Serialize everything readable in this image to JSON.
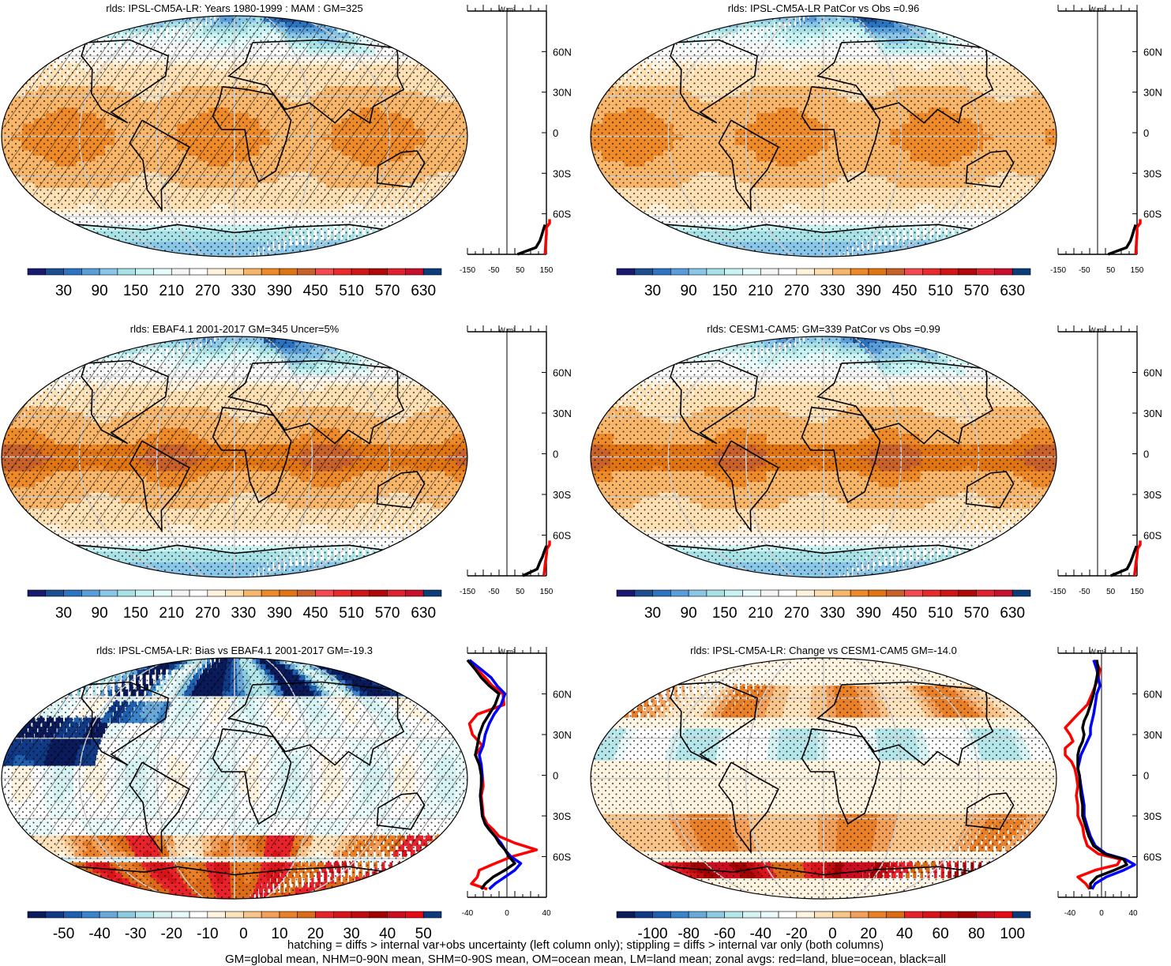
{
  "chart_data": [
    {
      "type": "heatmap",
      "title": "rlds: IPSL-CM5A-LR: Years 1980-1999 : MAM : GM=325",
      "colorbar": {
        "levels": [
          0,
          30,
          60,
          90,
          120,
          150,
          180,
          210,
          240,
          270,
          300,
          330,
          360,
          390,
          420,
          450,
          480,
          510,
          540,
          570,
          600,
          630,
          660
        ],
        "tick_labels": [
          "30",
          "90",
          "150",
          "210",
          "270",
          "330",
          "390",
          "450",
          "510",
          "570",
          "630"
        ]
      },
      "zonal": {
        "type": "line",
        "xlim": [
          -150,
          150
        ],
        "xticks": [
          "-150",
          "-50",
          "50",
          "150"
        ],
        "yticks": [
          "60N",
          "30N",
          "0",
          "30S",
          "60S"
        ],
        "unit": "W m²",
        "series": [
          {
            "name": "red",
            "color": "#ff0000",
            "lat": [
              -90,
              -80,
              -75,
              -70,
              -67,
              -64
            ],
            "values": [
              145,
              148,
              150,
              150,
              165,
              180
            ]
          },
          {
            "name": "black",
            "color": "#000000",
            "lat": [
              -90,
              -85,
              -80,
              -76,
              -72,
              -68
            ],
            "values": [
              40,
              110,
              125,
              132,
              138,
              145
            ]
          }
        ]
      }
    },
    {
      "type": "heatmap",
      "title": "rlds: IPSL-CM5A-LR PatCor vs Obs =0.96",
      "colorbar": {
        "levels": [
          0,
          30,
          60,
          90,
          120,
          150,
          180,
          210,
          240,
          270,
          300,
          330,
          360,
          390,
          420,
          450,
          480,
          510,
          540,
          570,
          600,
          630,
          660
        ],
        "tick_labels": [
          "30",
          "90",
          "150",
          "210",
          "270",
          "330",
          "390",
          "450",
          "510",
          "570",
          "630"
        ]
      },
      "zonal": {
        "type": "line",
        "xlim": [
          -150,
          150
        ],
        "xticks": [
          "-150",
          "-50",
          "50",
          "150"
        ],
        "yticks": [
          "60N",
          "30N",
          "0",
          "30S",
          "60S"
        ],
        "unit": "W m²",
        "series": [
          {
            "name": "red",
            "color": "#ff0000",
            "lat": [
              -90,
              -80,
              -75,
              -70,
              -67,
              -64
            ],
            "values": [
              145,
              148,
              150,
              150,
              165,
              180
            ]
          },
          {
            "name": "black",
            "color": "#000000",
            "lat": [
              -90,
              -85,
              -80,
              -76,
              -72,
              -68
            ],
            "values": [
              40,
              110,
              125,
              132,
              138,
              145
            ]
          }
        ]
      }
    },
    {
      "type": "heatmap",
      "title": "rlds: EBAF4.1 2001-2017 GM=345 Uncer=5%",
      "colorbar": {
        "levels": [
          0,
          30,
          60,
          90,
          120,
          150,
          180,
          210,
          240,
          270,
          300,
          330,
          360,
          390,
          420,
          450,
          480,
          510,
          540,
          570,
          600,
          630,
          660
        ],
        "tick_labels": [
          "30",
          "90",
          "150",
          "210",
          "270",
          "330",
          "390",
          "450",
          "510",
          "570",
          "630"
        ]
      },
      "zonal": {
        "type": "line",
        "xlim": [
          -150,
          150
        ],
        "xticks": [
          "-150",
          "-50",
          "50",
          "150"
        ],
        "yticks": [
          "60N",
          "30N",
          "0",
          "30S",
          "60S"
        ],
        "unit": "W m²",
        "series": [
          {
            "name": "red",
            "color": "#ff0000",
            "lat": [
              -90,
              -80,
              -75,
              -70,
              -67,
              -64
            ],
            "values": [
              140,
              146,
              150,
              152,
              165,
              175
            ]
          },
          {
            "name": "black",
            "color": "#000000",
            "lat": [
              -90,
              -85,
              -80,
              -76,
              -72,
              -68
            ],
            "values": [
              60,
              115,
              125,
              135,
              142,
              150
            ]
          }
        ]
      }
    },
    {
      "type": "heatmap",
      "title": "rlds: CESM1-CAM5: GM=339 PatCor vs Obs =0.99",
      "colorbar": {
        "levels": [
          0,
          30,
          60,
          90,
          120,
          150,
          180,
          210,
          240,
          270,
          300,
          330,
          360,
          390,
          420,
          450,
          480,
          510,
          540,
          570,
          600,
          630,
          660
        ],
        "tick_labels": [
          "30",
          "90",
          "150",
          "210",
          "270",
          "330",
          "390",
          "450",
          "510",
          "570",
          "630"
        ]
      },
      "zonal": {
        "type": "line",
        "xlim": [
          -150,
          150
        ],
        "xticks": [
          "-150",
          "-50",
          "50",
          "150"
        ],
        "yticks": [
          "60N",
          "30N",
          "0",
          "30S",
          "60S"
        ],
        "unit": "W m²",
        "series": [
          {
            "name": "red",
            "color": "#ff0000",
            "lat": [
              -90,
              -80,
              -75,
              -70,
              -67,
              -64
            ],
            "values": [
              140,
              146,
              150,
              152,
              165,
              178
            ]
          },
          {
            "name": "black",
            "color": "#000000",
            "lat": [
              -90,
              -85,
              -80,
              -76,
              -72,
              -68
            ],
            "values": [
              50,
              112,
              125,
              133,
              140,
              148
            ]
          }
        ]
      }
    },
    {
      "type": "heatmap",
      "title": "rlds: IPSL-CM5A-LR: Bias vs EBAF4.1 2001-2017 GM=-19.3",
      "colorbar": {
        "levels": [
          -55,
          -50,
          -45,
          -40,
          -35,
          -30,
          -25,
          -20,
          -15,
          -10,
          -5,
          0,
          5,
          10,
          15,
          20,
          25,
          30,
          35,
          40,
          45,
          50,
          55
        ],
        "tick_labels": [
          "-50",
          "-40",
          "-30",
          "-20",
          "-10",
          "0",
          "10",
          "20",
          "30",
          "40",
          "50"
        ]
      },
      "zonal": {
        "type": "line",
        "xlim": [
          -40,
          40
        ],
        "xticks": [
          "-40",
          "0",
          "40"
        ],
        "yticks": [
          "60N",
          "30N",
          "0",
          "30S",
          "60S"
        ],
        "unit": "W m²",
        "series": [
          {
            "name": "red",
            "color": "#ff0000",
            "lat": [
              85,
              78,
              72,
              66,
              60,
              52,
              45,
              38,
              30,
              22,
              15,
              8,
              0,
              -8,
              -15,
              -22,
              -30,
              -36,
              -40,
              -45,
              -50,
              -55,
              -60,
              -65,
              -70,
              -75,
              -80,
              -84
            ],
            "values": [
              -38,
              -30,
              -22,
              -15,
              -4,
              -3,
              -30,
              -38,
              -35,
              -25,
              -32,
              -28,
              -25,
              -24,
              -26,
              -25,
              -24,
              -20,
              -14,
              -8,
              8,
              30,
              5,
              -12,
              -28,
              -30,
              -36,
              -20
            ]
          },
          {
            "name": "blue",
            "color": "#0000ff",
            "lat": [
              85,
              78,
              72,
              66,
              60,
              52,
              45,
              38,
              30,
              22,
              15,
              8,
              0,
              -8,
              -15,
              -22,
              -30,
              -36,
              -40,
              -45,
              -50,
              -55,
              -60,
              -65,
              -70,
              -75,
              -80,
              -84
            ],
            "values": [
              -38,
              -26,
              -16,
              -10,
              -2,
              -6,
              -13,
              -18,
              -22,
              -24,
              -28,
              -26,
              -25,
              -26,
              -27,
              -26,
              -25,
              -22,
              -18,
              -12,
              -6,
              -2,
              4,
              14,
              8,
              -2,
              -12,
              -18
            ]
          },
          {
            "name": "black",
            "color": "#000000",
            "lat": [
              85,
              78,
              72,
              66,
              60,
              52,
              45,
              38,
              30,
              22,
              15,
              8,
              0,
              -8,
              -15,
              -22,
              -30,
              -36,
              -40,
              -45,
              -50,
              -55,
              -60,
              -65,
              -70,
              -75,
              -80,
              -84
            ],
            "values": [
              -40,
              -32,
              -26,
              -18,
              -8,
              -12,
              -18,
              -24,
              -28,
              -30,
              -32,
              -28,
              -26,
              -26,
              -27,
              -26,
              -25,
              -22,
              -18,
              -12,
              -8,
              -2,
              2,
              8,
              -2,
              -14,
              -22,
              -26
            ]
          }
        ]
      }
    },
    {
      "type": "heatmap",
      "title": "rlds: IPSL-CM5A-LR: Change vs CESM1-CAM5 GM=-14.0",
      "colorbar": {
        "levels": [
          -110,
          -100,
          -90,
          -80,
          -70,
          -60,
          -50,
          -40,
          -30,
          -20,
          -10,
          0,
          10,
          20,
          30,
          40,
          50,
          60,
          70,
          80,
          90,
          100,
          110
        ],
        "tick_labels": [
          "-100",
          "-80",
          "-60",
          "-40",
          "-20",
          "0",
          "20",
          "40",
          "60",
          "80",
          "100"
        ]
      },
      "zonal": {
        "type": "line",
        "xlim": [
          -55,
          45
        ],
        "xticks": [
          "-40",
          "0",
          "40"
        ],
        "yticks": [
          "60N",
          "30N",
          "0",
          "30S",
          "60S"
        ],
        "unit": "W m²",
        "series": [
          {
            "name": "red",
            "color": "#ff0000",
            "lat": [
              85,
              78,
              72,
              66,
              60,
              52,
              45,
              40,
              35,
              30,
              25,
              20,
              15,
              10,
              5,
              0,
              -8,
              -15,
              -22,
              -30,
              -38,
              -45,
              -52,
              -58,
              -62,
              -66,
              -70,
              -75,
              -80,
              -84
            ],
            "values": [
              -8,
              -2,
              -4,
              -8,
              -12,
              -18,
              -30,
              -38,
              -46,
              -40,
              -36,
              -46,
              -46,
              -38,
              -34,
              -32,
              -30,
              -32,
              -30,
              -30,
              -24,
              -22,
              -18,
              -4,
              24,
              20,
              -8,
              -30,
              -20,
              -15
            ]
          },
          {
            "name": "blue",
            "color": "#0000ff",
            "lat": [
              85,
              78,
              72,
              66,
              60,
              52,
              45,
              40,
              35,
              30,
              25,
              20,
              15,
              10,
              5,
              0,
              -8,
              -15,
              -22,
              -30,
              -38,
              -45,
              -52,
              -58,
              -62,
              -66,
              -70,
              -75,
              -80,
              -84
            ],
            "values": [
              -10,
              -6,
              -4,
              -2,
              -6,
              -8,
              -10,
              -12,
              -14,
              -14,
              -18,
              -22,
              -26,
              -28,
              -30,
              -28,
              -26,
              -24,
              -22,
              -22,
              -18,
              -14,
              -8,
              6,
              30,
              42,
              28,
              6,
              -8,
              -12
            ]
          },
          {
            "name": "black",
            "color": "#000000",
            "lat": [
              85,
              78,
              72,
              66,
              60,
              52,
              45,
              40,
              35,
              30,
              25,
              20,
              15,
              10,
              5,
              0,
              -8,
              -15,
              -22,
              -30,
              -38,
              -45,
              -52,
              -58,
              -62,
              -66,
              -70,
              -75,
              -80,
              -84
            ],
            "values": [
              -6,
              -4,
              -6,
              -8,
              -10,
              -14,
              -18,
              -22,
              -24,
              -22,
              -24,
              -28,
              -30,
              -30,
              -30,
              -28,
              -27,
              -26,
              -24,
              -24,
              -20,
              -16,
              -10,
              4,
              28,
              32,
              16,
              -6,
              -14,
              -14
            ]
          }
        ]
      }
    }
  ],
  "footer": {
    "line1": "hatching = diffs > internal var+obs uncertainty (left column only); stippling = diffs > internal var only (both columns)",
    "line2": "GM=global mean, NHM=0-90N mean, SHM=0-90S mean, OM=ocean mean, LM=land mean; zonal avgs: red=land, blue=ocean, black=all"
  },
  "colors": {
    "abs_scale": [
      "#191970",
      "#1b4f8f",
      "#2c74c2",
      "#5a9ed9",
      "#8ac6e8",
      "#a9e2e6",
      "#c9f3f3",
      "#e8fbfb",
      "#f4f4f4",
      "#ffffff",
      "#fff2dc",
      "#fde0b4",
      "#f8b66a",
      "#ee8a28",
      "#e07512",
      "#c8612a",
      "#f24a50",
      "#e82a2a",
      "#d01515",
      "#b00808",
      "#e0202e",
      "#c8102e",
      "#0a3d7a"
    ],
    "diff_scale": [
      "#0a1a5a",
      "#113a86",
      "#1f5fb0",
      "#3a84cc",
      "#6aa8d8",
      "#8ccbe0",
      "#b5e6ea",
      "#d6f2f3",
      "#eafafa",
      "#ffffff",
      "#fff4e0",
      "#fde3bd",
      "#f8c489",
      "#f2a05a",
      "#e98028",
      "#dd6a14",
      "#e8222a",
      "#d81418",
      "#bf0a0e",
      "#a30000",
      "#cc0c20",
      "#e60a15",
      "#0d3a7a"
    ]
  }
}
